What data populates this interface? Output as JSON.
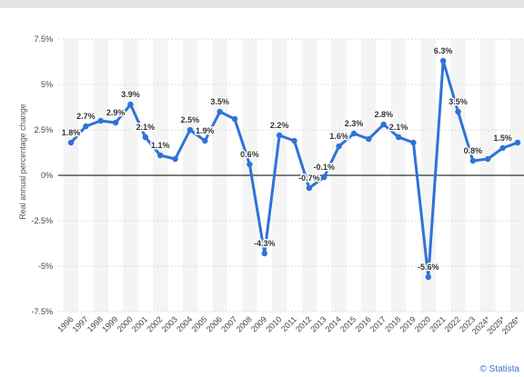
{
  "chart_data": {
    "type": "line",
    "ylabel": "Real annual percentage change",
    "ylim": [
      -7.5,
      7.5
    ],
    "yticks": [
      7.5,
      5,
      2.5,
      0,
      -2.5,
      -5,
      -7.5
    ],
    "ytick_labels": [
      "7.5%",
      "5%",
      "2.5%",
      "0%",
      "-2.5%",
      "-5%",
      "-7.5%"
    ],
    "categories": [
      "1996",
      "1997",
      "1998",
      "1999",
      "2000",
      "2001",
      "2002",
      "2003",
      "2004",
      "2005",
      "2006",
      "2007",
      "2008",
      "2009",
      "2010",
      "2011",
      "2012",
      "2013",
      "2014",
      "2015",
      "2016",
      "2017",
      "2018",
      "2019",
      "2020",
      "2021",
      "2022",
      "2023",
      "2024*",
      "2025*",
      "2026*"
    ],
    "values": [
      1.8,
      2.7,
      3.0,
      2.9,
      3.9,
      2.1,
      1.1,
      0.9,
      2.5,
      1.9,
      3.5,
      3.1,
      0.6,
      -4.3,
      2.2,
      1.9,
      -0.7,
      -0.1,
      1.6,
      2.3,
      2.0,
      2.8,
      2.1,
      1.8,
      -5.6,
      6.3,
      3.5,
      0.8,
      0.9,
      1.5,
      1.8
    ],
    "data_labels": [
      "1.8%",
      "2.7%",
      "",
      "2.9%",
      "3.9%",
      "2.1%",
      "1.1%",
      "",
      "2.5%",
      "1.9%",
      "3.5%",
      "",
      "0.6%",
      "-4.3%",
      "2.2%",
      "",
      "-0.7%",
      "-0.1%",
      "1.6%",
      "2.3%",
      "",
      "2.8%",
      "2.1%",
      "",
      "-5.6%",
      "6.3%",
      "3.5%",
      "0.8%",
      "",
      "1.5%",
      ""
    ],
    "grid": true,
    "line_color": "#2f72d8",
    "zero_line_color": "#000000"
  },
  "credit": "© Statista"
}
